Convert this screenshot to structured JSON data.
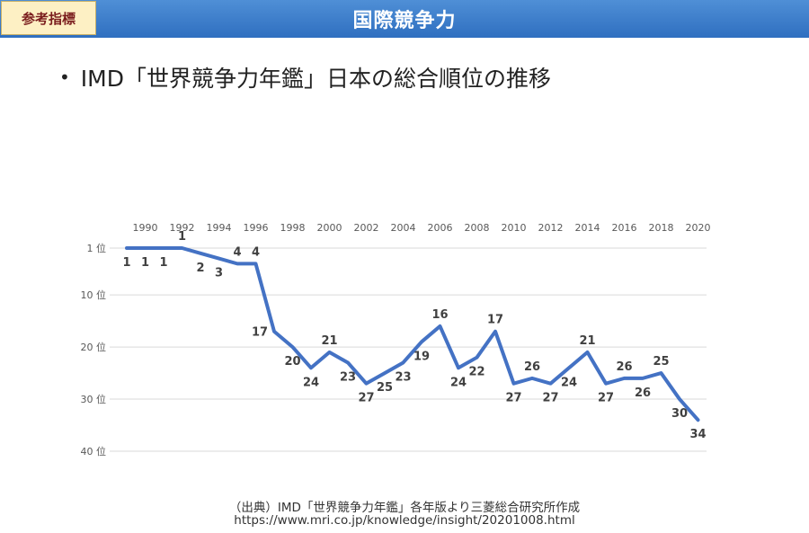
{
  "header": {
    "badge": "参考指標",
    "title": "国際競争力"
  },
  "bullet": {
    "text": "IMD「世界競争力年鑑」日本の総合順位の推移"
  },
  "source": {
    "line1": "（出典）IMD「世界競争力年鑑」各年版より三菱総合研究所作成",
    "line2": "https://www.mri.co.jp/knowledge/insight/20201008.html"
  },
  "chart_data": {
    "type": "line",
    "title": "",
    "xlabel": "",
    "ylabel": "",
    "x_tick_labels": [
      "1990",
      "1992",
      "1994",
      "1996",
      "1998",
      "2000",
      "2002",
      "2004",
      "2006",
      "2008",
      "2010",
      "2012",
      "2014",
      "2016",
      "2018",
      "2020"
    ],
    "y_tick_labels": [
      "1 位",
      "10 位",
      "20 位",
      "30 位",
      "40 位"
    ],
    "y_ticks": [
      1,
      10,
      20,
      30,
      40
    ],
    "ylim": [
      1,
      40
    ],
    "y_inverted": true,
    "grid": true,
    "line_color": "#4472c4",
    "x": [
      1989,
      1990,
      1991,
      1992,
      1993,
      1994,
      1995,
      1996,
      1997,
      1998,
      1999,
      2000,
      2001,
      2002,
      2003,
      2004,
      2005,
      2006,
      2007,
      2008,
      2009,
      2010,
      2011,
      2012,
      2013,
      2014,
      2015,
      2016,
      2017,
      2018,
      2019,
      2020
    ],
    "values": [
      1,
      1,
      1,
      1,
      2,
      3,
      4,
      4,
      17,
      20,
      24,
      21,
      23,
      27,
      25,
      23,
      19,
      16,
      24,
      22,
      17,
      27,
      26,
      27,
      24,
      21,
      27,
      26,
      26,
      25,
      30,
      34
    ]
  }
}
